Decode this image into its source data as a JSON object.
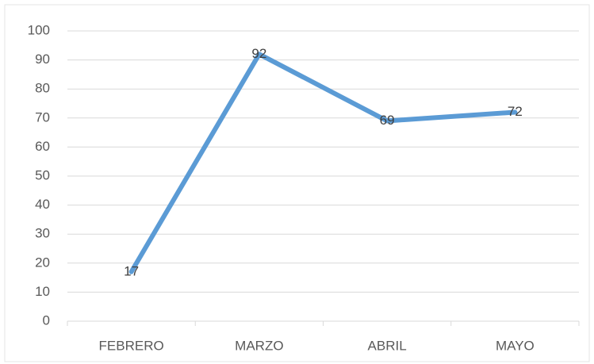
{
  "chart_data": {
    "type": "line",
    "categories": [
      "FEBRERO",
      "MARZO",
      "ABRIL",
      "MAYO"
    ],
    "values": [
      17,
      92,
      69,
      72
    ],
    "color": "#5b9bd5",
    "ylim": [
      0,
      100
    ],
    "yticks": [
      0,
      10,
      20,
      30,
      40,
      50,
      60,
      70,
      80,
      90,
      100
    ],
    "grid": true,
    "data_labels": true
  }
}
